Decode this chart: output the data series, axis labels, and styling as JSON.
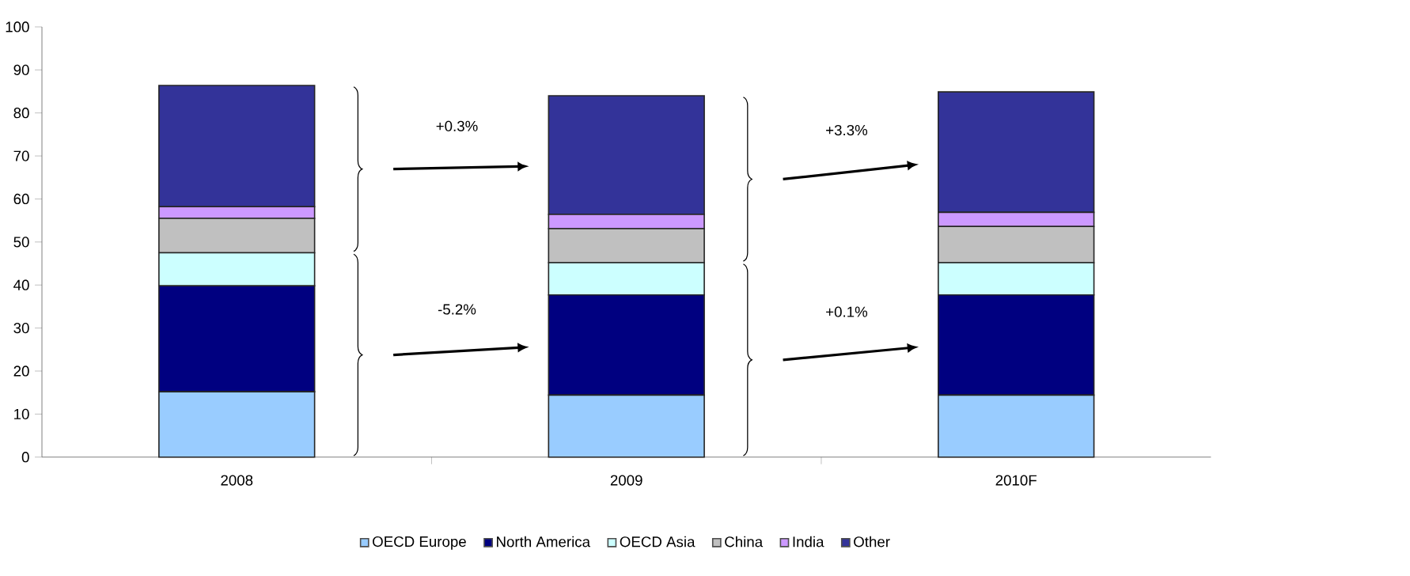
{
  "chart_data": {
    "type": "bar",
    "stacked": true,
    "categories": [
      "2008",
      "2009",
      "2010F"
    ],
    "series": [
      {
        "name": "OECD Europe",
        "color": "#99ccff",
        "values": [
          15.2,
          14.4,
          14.4
        ]
      },
      {
        "name": "North America",
        "color": "#000080",
        "values": [
          24.6,
          23.3,
          23.3
        ]
      },
      {
        "name": "OECD Asia",
        "color": "#ccffff",
        "values": [
          7.7,
          7.5,
          7.5
        ]
      },
      {
        "name": "China",
        "color": "#c0c0c0",
        "values": [
          8.0,
          7.9,
          8.4
        ]
      },
      {
        "name": "India",
        "color": "#cc99ff",
        "values": [
          2.7,
          3.3,
          3.3
        ]
      },
      {
        "name": "Other",
        "color": "#333399",
        "values": [
          28.2,
          27.6,
          28.0
        ]
      }
    ],
    "ylim": [
      0,
      100
    ],
    "yticks": [
      0,
      10,
      20,
      30,
      40,
      50,
      60,
      70,
      80,
      90,
      100
    ],
    "grid": false,
    "legend": "bottom",
    "annotations": [
      "+0.3%",
      "-5.2%",
      "+3.3%",
      "+0.1%"
    ]
  }
}
